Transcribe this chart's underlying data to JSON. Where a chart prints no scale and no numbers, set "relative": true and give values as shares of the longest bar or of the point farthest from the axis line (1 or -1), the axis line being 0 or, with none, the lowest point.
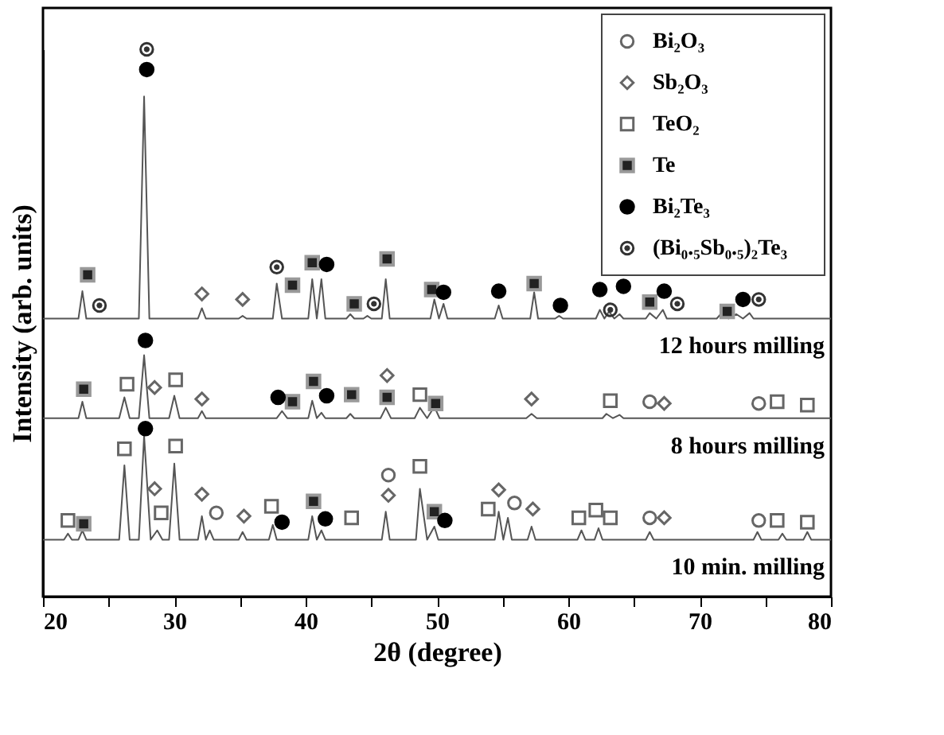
{
  "chart_data": {
    "type": "line",
    "relative": true,
    "xlabel": "2θ (degree)",
    "ylabel": "Intensity (arb. units)",
    "xlim": [
      20,
      80
    ],
    "xticks": [
      20,
      {
        "value": 25,
        "label": null
      },
      30,
      {
        "value": 35,
        "label": null
      },
      40,
      {
        "value": 45,
        "label": null
      },
      50,
      {
        "value": 55,
        "label": null
      },
      60,
      {
        "value": 65,
        "label": null
      },
      70,
      {
        "value": 75,
        "label": null
      },
      80
    ],
    "tick_labels": "x",
    "grid": false,
    "legend": "top right",
    "series": [
      {
        "name": "12 hours milling",
        "marker": "none",
        "color": "#555555",
        "x": [
          20,
          22.7,
          23.0,
          23.3,
          27.3,
          27.7,
          28.1,
          31.8,
          32.1,
          32.4,
          34.9,
          35.2,
          35.5,
          37.5,
          37.8,
          38.2,
          40.2,
          40.5,
          40.85,
          41.2,
          41.5,
          43.1,
          43.4,
          43.7,
          44.4,
          44.7,
          45.0,
          45.8,
          46.1,
          46.4,
          49.5,
          49.8,
          50.15,
          50.5,
          50.8,
          54.4,
          54.7,
          55.0,
          57.1,
          57.4,
          57.7,
          59.0,
          59.3,
          59.6,
          62.1,
          62.4,
          62.75,
          63.1,
          63.5,
          63.9,
          64.2,
          65.9,
          66.2,
          66.7,
          67.2,
          67.5,
          71.3,
          71.6,
          72.2,
          72.8,
          73.3,
          73.8,
          74.1,
          80
        ],
        "values": [
          0.508,
          0.508,
          0.558,
          0.508,
          0.508,
          0.914,
          0.508,
          0.508,
          0.527,
          0.508,
          0.508,
          0.513,
          0.508,
          0.508,
          0.572,
          0.508,
          0.508,
          0.58,
          0.508,
          0.58,
          0.508,
          0.508,
          0.516,
          0.508,
          0.508,
          0.513,
          0.508,
          0.508,
          0.58,
          0.508,
          0.508,
          0.543,
          0.508,
          0.535,
          0.508,
          0.508,
          0.532,
          0.508,
          0.508,
          0.556,
          0.508,
          0.508,
          0.513,
          0.508,
          0.508,
          0.524,
          0.508,
          0.521,
          0.508,
          0.516,
          0.508,
          0.508,
          0.518,
          0.508,
          0.524,
          0.508,
          0.508,
          0.516,
          0.508,
          0.516,
          0.508,
          0.518,
          0.508,
          0.508
        ]
      },
      {
        "name": "8 hours milling",
        "marker": "none",
        "color": "#555555",
        "x": [
          20,
          22.7,
          23.0,
          23.3,
          25.8,
          26.2,
          26.6,
          27.3,
          27.7,
          28.1,
          29.6,
          30.0,
          30.4,
          31.8,
          32.1,
          32.4,
          37.8,
          38.2,
          38.6,
          40.2,
          40.5,
          40.85,
          41.2,
          41.5,
          43.1,
          43.4,
          43.7,
          45.7,
          46.1,
          46.5,
          48.3,
          48.7,
          49.25,
          49.8,
          50.2,
          56.8,
          57.2,
          57.6,
          62.6,
          62.9,
          63.4,
          63.9,
          64.2,
          80
        ],
        "values": [
          0.326,
          0.326,
          0.356,
          0.326,
          0.326,
          0.364,
          0.326,
          0.326,
          0.441,
          0.326,
          0.326,
          0.367,
          0.326,
          0.326,
          0.339,
          0.326,
          0.326,
          0.339,
          0.326,
          0.326,
          0.358,
          0.326,
          0.336,
          0.326,
          0.326,
          0.334,
          0.326,
          0.326,
          0.345,
          0.326,
          0.326,
          0.345,
          0.326,
          0.347,
          0.326,
          0.326,
          0.334,
          0.326,
          0.326,
          0.334,
          0.326,
          0.332,
          0.326,
          0.326
        ]
      },
      {
        "name": "10 min. milling",
        "marker": "none",
        "color": "#555555",
        "x": [
          20,
          21.6,
          21.9,
          22.2,
          22.7,
          23.0,
          23.3,
          25.8,
          26.2,
          26.6,
          27.3,
          27.7,
          28.2,
          28.7,
          29.1,
          29.6,
          30.0,
          30.4,
          31.8,
          32.1,
          32.4,
          32.7,
          33.0,
          34.9,
          35.2,
          35.5,
          37.2,
          37.5,
          37.8,
          40.2,
          40.5,
          40.85,
          41.2,
          41.5,
          45.8,
          46.1,
          46.4,
          48.4,
          48.7,
          49.25,
          49.8,
          50.1,
          54.4,
          54.7,
          55.05,
          55.4,
          55.7,
          56.9,
          57.2,
          57.5,
          60.7,
          61.0,
          61.3,
          62.0,
          62.3,
          62.6,
          65.9,
          66.2,
          66.5,
          74.1,
          74.4,
          74.7,
          76.0,
          76.3,
          76.6,
          77.9,
          78.2,
          78.5,
          80
        ],
        "values": [
          0.104,
          0.104,
          0.115,
          0.104,
          0.104,
          0.121,
          0.104,
          0.104,
          0.24,
          0.104,
          0.104,
          0.294,
          0.104,
          0.121,
          0.104,
          0.104,
          0.243,
          0.104,
          0.104,
          0.147,
          0.104,
          0.121,
          0.104,
          0.104,
          0.118,
          0.104,
          0.104,
          0.131,
          0.104,
          0.104,
          0.147,
          0.104,
          0.121,
          0.104,
          0.104,
          0.155,
          0.104,
          0.104,
          0.197,
          0.104,
          0.128,
          0.104,
          0.104,
          0.155,
          0.104,
          0.144,
          0.104,
          0.104,
          0.128,
          0.104,
          0.104,
          0.121,
          0.104,
          0.104,
          0.125,
          0.104,
          0.104,
          0.118,
          0.104,
          0.104,
          0.118,
          0.104,
          0.104,
          0.115,
          0.104,
          0.104,
          0.118,
          0.104,
          0.104
        ]
      },
      {
        "name": "Bi₂O₃",
        "type": "scatter",
        "marker": "circle",
        "color": "#666666",
        "x": [
          66.2,
          74.5,
          33.2,
          46.3,
          55.9,
          66.2,
          74.5
        ],
        "values": [
          0.356,
          0.353,
          0.153,
          0.222,
          0.171,
          0.144,
          0.139
        ]
      },
      {
        "name": "Sb₂O₃",
        "type": "scatter",
        "marker": "diamond",
        "color": "#666666",
        "x": [
          32.1,
          35.2,
          28.5,
          32.1,
          46.2,
          57.2,
          67.3,
          28.5,
          32.1,
          35.3,
          46.3,
          54.7,
          57.3,
          67.3
        ],
        "values": [
          0.553,
          0.543,
          0.382,
          0.361,
          0.404,
          0.361,
          0.353,
          0.197,
          0.187,
          0.147,
          0.185,
          0.195,
          0.16,
          0.144
        ]
      },
      {
        "name": "TeO₂",
        "type": "scatter",
        "marker": "square",
        "color": "#666666",
        "x": [
          26.4,
          30.1,
          48.7,
          63.2,
          75.9,
          78.2,
          21.9,
          26.2,
          30.1,
          29.0,
          37.4,
          43.5,
          48.7,
          53.9,
          60.8,
          62.1,
          63.2,
          75.9,
          78.2
        ],
        "values": [
          0.388,
          0.396,
          0.369,
          0.358,
          0.356,
          0.35,
          0.139,
          0.27,
          0.275,
          0.153,
          0.165,
          0.144,
          0.238,
          0.16,
          0.144,
          0.158,
          0.144,
          0.139,
          0.136
        ]
      },
      {
        "name": "Te",
        "type": "scatter",
        "marker": "square",
        "color": "#222222",
        "x": [
          23.4,
          39.0,
          40.5,
          43.7,
          46.2,
          49.6,
          57.4,
          66.2,
          72.1,
          23.1,
          39.0,
          40.6,
          43.5,
          46.2,
          49.9,
          23.1,
          40.6,
          49.8
        ],
        "values": [
          0.588,
          0.569,
          0.61,
          0.535,
          0.617,
          0.561,
          0.572,
          0.538,
          0.521,
          0.379,
          0.356,
          0.393,
          0.369,
          0.364,
          0.353,
          0.133,
          0.174,
          0.155
        ]
      },
      {
        "name": "Bi₂Te₃",
        "type": "scatter",
        "marker": "circle",
        "color": "#000000",
        "x": [
          27.9,
          41.6,
          50.5,
          54.7,
          59.4,
          62.4,
          64.2,
          67.3,
          73.3,
          27.8,
          37.9,
          41.6,
          27.8,
          38.2,
          41.5,
          50.6
        ],
        "values": [
          0.963,
          0.607,
          0.556,
          0.558,
          0.532,
          0.561,
          0.567,
          0.558,
          0.543,
          0.468,
          0.364,
          0.367,
          0.307,
          0.136,
          0.142,
          0.139
        ]
      },
      {
        "name": "(Bi₀.₅Sb₀.₅)₂Te₃",
        "type": "scatter",
        "marker": "circle-dot",
        "color": "#333333",
        "x": [
          27.9,
          24.3,
          37.8,
          45.2,
          63.2,
          68.3,
          74.5
        ],
        "values": [
          1,
          0.532,
          0.602,
          0.535,
          0.524,
          0.535,
          0.543
        ]
      }
    ]
  }
}
